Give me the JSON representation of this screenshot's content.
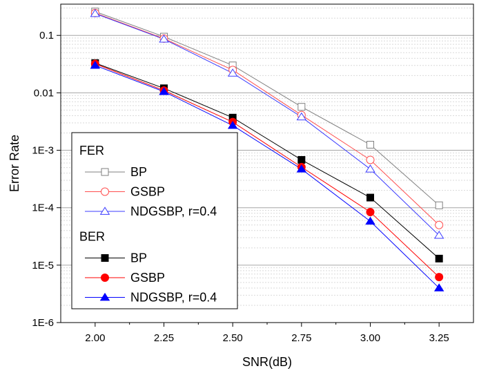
{
  "chart_data": {
    "type": "line",
    "title": "",
    "xlabel": "SNR(dB)",
    "ylabel": "Error Rate",
    "x": [
      2.0,
      2.25,
      2.5,
      2.75,
      3.0,
      3.25
    ],
    "x_tick_labels": [
      "2.00",
      "2.25",
      "2.50",
      "2.75",
      "3.00",
      "3.25"
    ],
    "xlim": [
      1.875,
      3.375
    ],
    "y_scale": "log",
    "ylim": [
      1e-06,
      0.35
    ],
    "y_ticks": [
      1e-06,
      1e-05,
      0.0001,
      0.001,
      0.01,
      0.1
    ],
    "y_tick_labels": [
      "1E-6",
      "1E-5",
      "1E-4",
      "1E-3",
      "0.01",
      "0.1"
    ],
    "grid": true,
    "legend_placement": "bottom-left",
    "legend_groups": [
      {
        "title": "FER",
        "series_indices": [
          0,
          1,
          2
        ]
      },
      {
        "title": "BER",
        "series_indices": [
          3,
          4,
          5
        ]
      }
    ],
    "series": [
      {
        "name": "BP",
        "group": "FER",
        "color": "#7f7f7f",
        "marker": "square",
        "filled": false,
        "values": [
          0.26,
          0.095,
          0.03,
          0.0057,
          0.00125,
          0.00011
        ]
      },
      {
        "name": "GSBP",
        "group": "FER",
        "color": "#ff4d4d",
        "marker": "circle",
        "filled": false,
        "values": [
          0.245,
          0.088,
          0.025,
          0.0041,
          0.00068,
          5e-05
        ]
      },
      {
        "name": "NDGSBP, r=0.4",
        "group": "FER",
        "color": "#3b3bff",
        "marker": "triangle",
        "filled": false,
        "values": [
          0.24,
          0.086,
          0.022,
          0.0038,
          0.00047,
          3.3e-05
        ]
      },
      {
        "name": "BP",
        "group": "BER",
        "color": "#000000",
        "marker": "square",
        "filled": true,
        "values": [
          0.033,
          0.012,
          0.0037,
          0.00068,
          0.00015,
          1.3e-05
        ]
      },
      {
        "name": "GSBP",
        "group": "BER",
        "color": "#ff0000",
        "marker": "circle",
        "filled": true,
        "values": [
          0.032,
          0.011,
          0.0031,
          0.00051,
          8.4e-05,
          6.2e-06
        ]
      },
      {
        "name": "NDGSBP, r=0.4",
        "group": "BER",
        "color": "#0000ff",
        "marker": "triangle",
        "filled": true,
        "values": [
          0.03,
          0.0105,
          0.0027,
          0.00047,
          5.8e-05,
          4e-06
        ]
      }
    ]
  }
}
